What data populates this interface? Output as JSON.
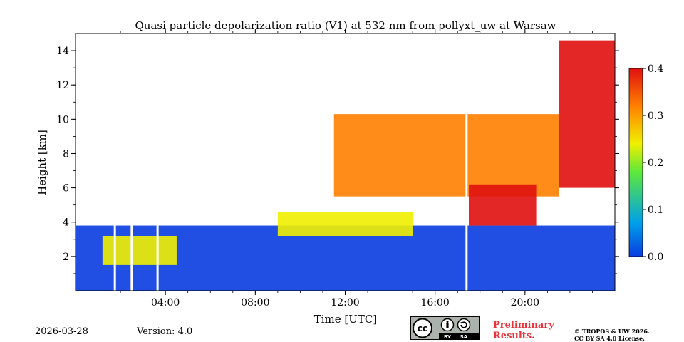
{
  "chart_data": {
    "type": "heatmap",
    "title": "Quasi particle depolarization ratio (V1) at 532 nm from pollyxt_uw at Warsaw",
    "xlabel": "Time [UTC]",
    "ylabel": "Height [km]",
    "xlim": [
      0,
      24
    ],
    "ylim": [
      0,
      15
    ],
    "x_ticks": [
      {
        "value": 4,
        "label": "04:00"
      },
      {
        "value": 8,
        "label": "08:00"
      },
      {
        "value": 12,
        "label": "12:00"
      },
      {
        "value": 16,
        "label": "16:00"
      },
      {
        "value": 20,
        "label": "20:00"
      }
    ],
    "y_ticks": [
      {
        "value": 2,
        "label": "2"
      },
      {
        "value": 4,
        "label": "4"
      },
      {
        "value": 6,
        "label": "6"
      },
      {
        "value": 8,
        "label": "8"
      },
      {
        "value": 10,
        "label": "10"
      },
      {
        "value": 12,
        "label": "12"
      },
      {
        "value": 14,
        "label": "14"
      }
    ],
    "colorbar": {
      "range": [
        0.0,
        0.4
      ],
      "ticks": [
        "0.0",
        "0.1",
        "0.2",
        "0.3",
        "0.4"
      ],
      "colors": [
        "#0a3ce0",
        "#00a0e8",
        "#5ee83c",
        "#f0f000",
        "#ff8000",
        "#e01010"
      ]
    },
    "data_gaps_utc": [
      1.75,
      2.5,
      3.65,
      17.4
    ],
    "regions": [
      {
        "name": "boundary-layer",
        "t": [
          0,
          24
        ],
        "h_bottom": 0.0,
        "h_top": 3.8,
        "value": 0.02
      },
      {
        "name": "morning-aerosol",
        "t": [
          1.2,
          4.5
        ],
        "h_bottom": 1.5,
        "h_top": 3.2,
        "value": 0.2
      },
      {
        "name": "dust-plume-lower",
        "t": [
          9.0,
          15.0
        ],
        "h_bottom": 3.2,
        "h_top": 4.6,
        "value": 0.25
      },
      {
        "name": "dust-plume-upper",
        "t": [
          11.5,
          21.5
        ],
        "h_bottom": 5.5,
        "h_top": 10.3,
        "value": 0.33
      },
      {
        "name": "evening-dust-core",
        "t": [
          17.5,
          20.5
        ],
        "h_bottom": 3.8,
        "h_top": 6.2,
        "value": 0.38
      },
      {
        "name": "cirrus",
        "t": [
          21.5,
          24
        ],
        "h_bottom": 6.0,
        "h_top": 14.6,
        "value": 0.4
      }
    ]
  },
  "footer": {
    "date": "2026-03-28",
    "version": "Version: 4.0",
    "preliminary_line1": "Preliminary",
    "preliminary_line2": "Results.",
    "copyright_line1": "© TROPOS & UW 2026.",
    "copyright_line2": "CC BY SA 4.0 License.",
    "cc_badge": [
      "cc",
      "BY",
      "SA"
    ]
  }
}
